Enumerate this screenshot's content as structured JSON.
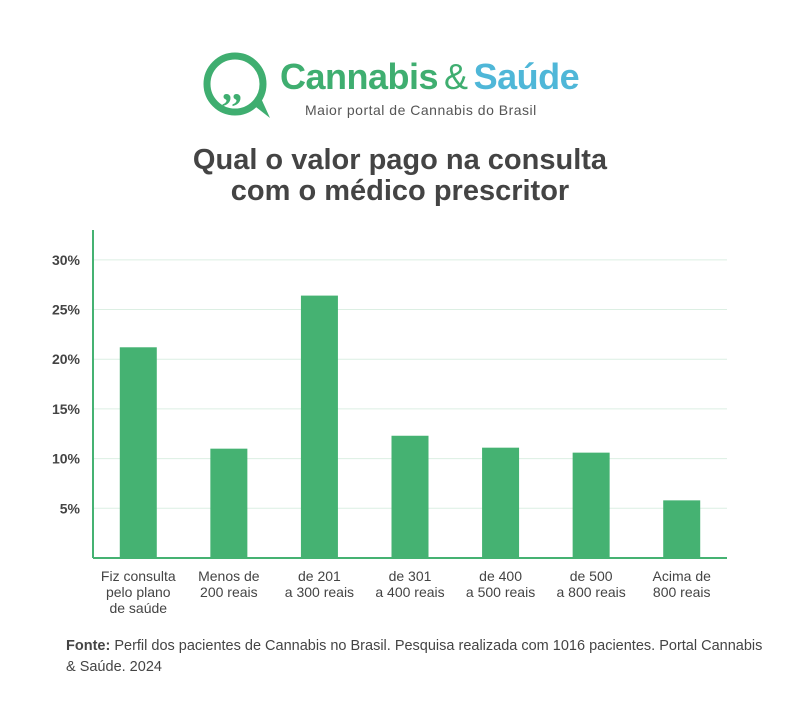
{
  "brand": {
    "name_part1": "Cannabis",
    "name_amp": "&",
    "name_part2": "Saúde",
    "tagline": "Maior portal de Cannabis do Brasil",
    "colors": {
      "green": "#3fae70",
      "blue": "#4fb7d8"
    },
    "logo_icon": "speech-bubble-quote-icon"
  },
  "title": {
    "line1": "Qual o valor pago na consulta",
    "line2": "com o médico prescritor"
  },
  "chart_data": {
    "type": "bar",
    "categories": [
      "Fiz consulta pelo plano de saúde",
      "Menos de 200 reais",
      "de 201 a 300 reais",
      "de 301 a 400 reais",
      "de 400 a 500 reais",
      "de 500 a 800 reais",
      "Acima de 800 reais"
    ],
    "category_lines": [
      [
        "Fiz consulta",
        "pelo plano",
        "de saúde"
      ],
      [
        "Menos de",
        "200 reais"
      ],
      [
        "de 201",
        "a 300 reais"
      ],
      [
        "de 301",
        "a 400 reais"
      ],
      [
        "de 400",
        "a 500 reais"
      ],
      [
        "de 500",
        "a 800 reais"
      ],
      [
        "Acima de",
        "800 reais"
      ]
    ],
    "values": [
      21.2,
      11.0,
      26.4,
      12.3,
      11.1,
      10.6,
      5.8
    ],
    "yticks": [
      5,
      10,
      15,
      20,
      25,
      30
    ],
    "ytick_labels": [
      "5%",
      "10%",
      "15%",
      "20%",
      "25%",
      "30%"
    ],
    "ylim": [
      0,
      33
    ],
    "bar_color": "#45b272",
    "grid": true,
    "legend": false
  },
  "source": {
    "label": "Fonte:",
    "text": "Perfil dos pacientes de Cannabis no Brasil. Pesquisa realizada com 1016 pacientes. Portal Cannabis & Saúde. 2024"
  }
}
